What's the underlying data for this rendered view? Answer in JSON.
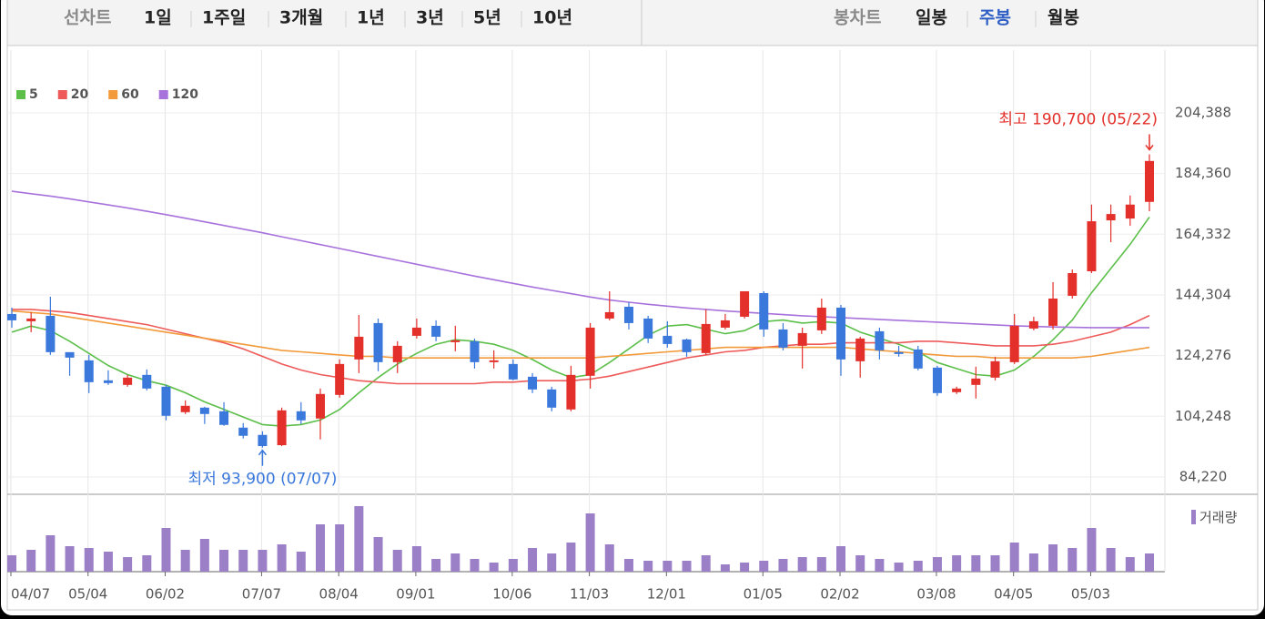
{
  "tabs": {
    "line_chart": {
      "label": "선차트",
      "items": [
        "1일",
        "1주일",
        "3개월",
        "1년",
        "3년",
        "5년",
        "10년"
      ]
    },
    "candle_chart": {
      "label": "봉차트",
      "items": [
        "일봉",
        "주봉",
        "월봉"
      ],
      "active": 1
    }
  },
  "chart_data": {
    "type": "candlestick",
    "categories": [
      "04/07",
      null,
      null,
      null,
      "05/04",
      null,
      null,
      null,
      "06/02",
      null,
      null,
      null,
      null,
      "07/07",
      null,
      null,
      null,
      "08/04",
      null,
      null,
      null,
      "09/01",
      null,
      null,
      null,
      null,
      "10/06",
      null,
      null,
      null,
      "11/03",
      null,
      null,
      null,
      "12/01",
      null,
      null,
      null,
      null,
      "01/05",
      null,
      null,
      null,
      "02/02",
      null,
      null,
      null,
      null,
      "03/08",
      null,
      null,
      null,
      "04/05",
      null,
      null,
      null,
      "05/03",
      null,
      null,
      null
    ],
    "open": [
      138000,
      135600,
      137400,
      125400,
      122700,
      116100,
      114600,
      117900,
      114000,
      105600,
      107100,
      105900,
      100500,
      98100,
      94700,
      105900,
      103500,
      111300,
      123000,
      135000,
      122100,
      130800,
      134100,
      128700,
      129000,
      122100,
      121500,
      117300,
      113100,
      106500,
      117600,
      136500,
      140400,
      136500,
      130800,
      129600,
      125100,
      133500,
      137100,
      144900,
      132900,
      127500,
      132600,
      140100,
      122400,
      132300,
      125400,
      126300,
      120300,
      112200,
      114600,
      117000,
      122100,
      133200,
      134100,
      144000,
      152100,
      168900,
      169500,
      175000
    ],
    "high": [
      140100,
      138600,
      143700,
      125400,
      124500,
      119400,
      117900,
      119700,
      114600,
      109500,
      107400,
      108900,
      102000,
      99300,
      107100,
      108900,
      113400,
      123000,
      137700,
      136500,
      129000,
      136500,
      135900,
      134100,
      129900,
      126000,
      123000,
      118500,
      114000,
      120900,
      135000,
      145500,
      141900,
      137400,
      135600,
      129900,
      139500,
      138000,
      145500,
      145500,
      135000,
      133500,
      143100,
      141000,
      130500,
      133500,
      127500,
      127500,
      120900,
      114000,
      120600,
      123900,
      138000,
      137100,
      148500,
      152700,
      174100,
      174100,
      177100,
      190700
    ],
    "low": [
      133500,
      132000,
      124500,
      117600,
      111900,
      114600,
      114000,
      112800,
      102900,
      105000,
      101700,
      101100,
      96900,
      93900,
      94400,
      101700,
      96600,
      110400,
      118500,
      119100,
      118500,
      129900,
      129000,
      125700,
      120000,
      120000,
      116100,
      111900,
      105900,
      105900,
      113400,
      135900,
      132900,
      128400,
      126900,
      123900,
      124500,
      132900,
      136500,
      130500,
      126000,
      120000,
      131400,
      117600,
      117000,
      123000,
      123900,
      119400,
      111000,
      111600,
      110100,
      116100,
      121500,
      132600,
      132900,
      143100,
      151500,
      161700,
      167100,
      171900
    ],
    "close": [
      135900,
      136500,
      125400,
      123600,
      115500,
      115200,
      117000,
      113400,
      104400,
      107700,
      105000,
      101400,
      97800,
      94400,
      106200,
      102900,
      111600,
      121500,
      130500,
      122100,
      127500,
      133500,
      130500,
      129300,
      122100,
      122700,
      116400,
      113100,
      107100,
      117900,
      133500,
      138600,
      135000,
      129900,
      128100,
      125400,
      134700,
      135900,
      145500,
      132900,
      126900,
      131700,
      140100,
      123000,
      129900,
      126000,
      124800,
      120000,
      111900,
      113400,
      116700,
      122400,
      134100,
      135600,
      143100,
      151500,
      168600,
      171000,
      174100,
      188500
    ],
    "up_color": "#e3302a",
    "down_color": "#3a78dc",
    "series": [
      {
        "name": "5",
        "color": "#5cbf4a",
        "values": [
          132000,
          134000,
          132500,
          129000,
          125000,
          121000,
          118000,
          116000,
          114500,
          112000,
          109000,
          106500,
          104000,
          101500,
          101000,
          101500,
          103000,
          106500,
          112000,
          117000,
          121500,
          125000,
          128000,
          129500,
          129000,
          128000,
          126000,
          123000,
          119500,
          117000,
          118000,
          122000,
          126500,
          131000,
          134000,
          134500,
          133000,
          131500,
          132500,
          135500,
          136000,
          135000,
          135500,
          135000,
          132000,
          130000,
          128000,
          125500,
          122000,
          120000,
          118000,
          117500,
          119500,
          124000,
          129500,
          136000,
          145000,
          153000,
          161000,
          170000
        ]
      },
      {
        "name": "20",
        "color": "#ee5a5a",
        "values": [
          139500,
          139500,
          139000,
          138500,
          137500,
          136500,
          135500,
          134500,
          133000,
          131500,
          130000,
          128500,
          126500,
          124000,
          121500,
          119500,
          118000,
          117000,
          116000,
          115500,
          115000,
          115000,
          115000,
          115000,
          115000,
          115500,
          115500,
          116000,
          116000,
          116000,
          116500,
          117500,
          119000,
          120500,
          122000,
          123500,
          124500,
          125500,
          126000,
          127000,
          127500,
          128000,
          128000,
          128500,
          128500,
          128500,
          128500,
          129000,
          129000,
          128500,
          128000,
          127500,
          127500,
          127500,
          128000,
          129000,
          130500,
          132000,
          134500,
          137500
        ]
      },
      {
        "name": "60",
        "color": "#f29a3a",
        "values": [
          139000,
          138500,
          138000,
          137000,
          136000,
          135000,
          134000,
          133000,
          132000,
          131000,
          130000,
          129000,
          128000,
          127000,
          126000,
          125500,
          125000,
          124500,
          124000,
          124000,
          123500,
          123500,
          123500,
          123500,
          123500,
          123500,
          123500,
          123500,
          123500,
          123500,
          123500,
          124000,
          124500,
          125000,
          125500,
          126000,
          126500,
          127000,
          127000,
          127000,
          127000,
          127000,
          127000,
          127000,
          126500,
          126000,
          125500,
          125000,
          124500,
          124000,
          124000,
          123500,
          123500,
          123500,
          123500,
          123500,
          124000,
          125000,
          126000,
          127000
        ]
      },
      {
        "name": "120",
        "color": "#a872dc",
        "values": [
          178500,
          177700,
          176900,
          176000,
          175000,
          174000,
          173000,
          171900,
          170800,
          169600,
          168400,
          167200,
          166000,
          164800,
          163500,
          162200,
          160900,
          159600,
          158300,
          157000,
          155700,
          154400,
          153100,
          151800,
          150500,
          149300,
          148100,
          146900,
          145800,
          144700,
          143600,
          142600,
          141900,
          141200,
          140600,
          140000,
          139500,
          139000,
          138600,
          138200,
          137800,
          137400,
          137100,
          136800,
          136500,
          136200,
          135900,
          135600,
          135300,
          135000,
          134700,
          134400,
          134100,
          133900,
          133700,
          133600,
          133500,
          133500,
          133500,
          133500
        ]
      }
    ],
    "legend": "top-left",
    "ylim": [
      79400,
      225100
    ],
    "yticks": [
      {
        "value": 84220,
        "label": "84,220"
      },
      {
        "value": 104248,
        "label": "104,248"
      },
      {
        "value": 124276,
        "label": "124,276"
      },
      {
        "value": 144304,
        "label": "144,304"
      },
      {
        "value": 164332,
        "label": "164,332"
      },
      {
        "value": 184360,
        "label": "184,360"
      },
      {
        "value": 204388,
        "label": "204,388"
      }
    ],
    "grid": true,
    "annotations": {
      "max": "최고 190,700 (05/22)",
      "min": "최저 93,900 (07/07)"
    },
    "volume": {
      "label": "거래량",
      "color": "#9b80c8",
      "ylim": [
        0,
        80
      ],
      "values": [
        18,
        24,
        40,
        28,
        26,
        22,
        16,
        18,
        48,
        24,
        36,
        24,
        24,
        24,
        30,
        22,
        52,
        52,
        72,
        38,
        24,
        28,
        14,
        20,
        14,
        10,
        14,
        26,
        20,
        32,
        64,
        30,
        14,
        12,
        12,
        12,
        18,
        8,
        10,
        12,
        14,
        16,
        16,
        28,
        18,
        14,
        10,
        12,
        16,
        18,
        18,
        18,
        32,
        20,
        30,
        26,
        48,
        26,
        16,
        20
      ]
    }
  }
}
